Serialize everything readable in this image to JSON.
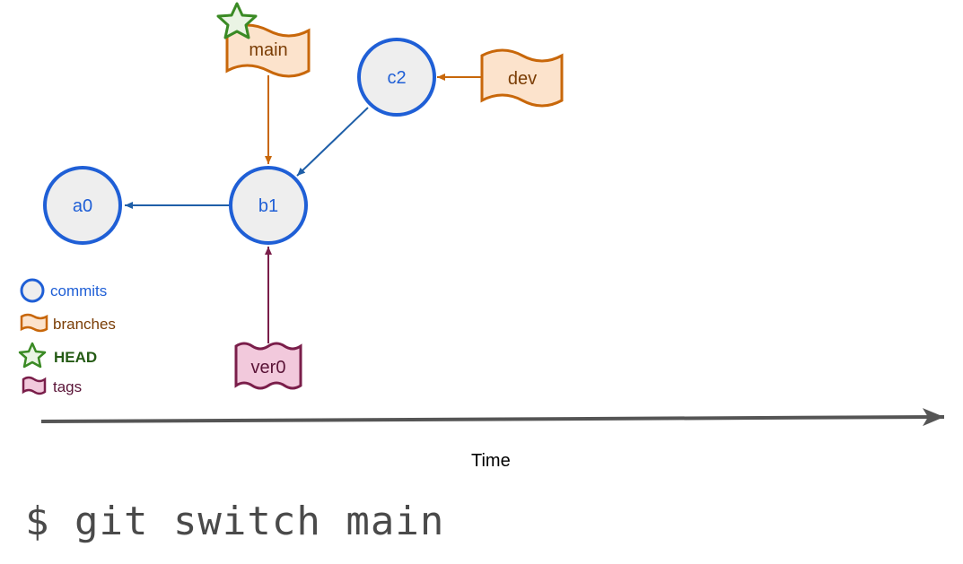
{
  "commits": [
    "a0",
    "b1",
    "c2"
  ],
  "branches": [
    "main",
    "dev"
  ],
  "tags": [
    "ver0"
  ],
  "legend": {
    "commits": "commits",
    "branches": "branches",
    "head": "HEAD",
    "tags": "tags"
  },
  "axis_label": "Time",
  "command": "$ git switch main",
  "colors": {
    "commit_stroke": "#1f5fd6",
    "commit_fill": "#eeeeee",
    "commit_text": "#1f5fd6",
    "branch_stroke": "#c8670a",
    "branch_fill": "#fce3cc",
    "branch_text": "#7a3d05",
    "head": "#3a8a24",
    "tag_stroke": "#7a1e4a",
    "tag_fill": "#f2c9dc",
    "tag_text": "#5a1437",
    "axis": "#555555"
  }
}
